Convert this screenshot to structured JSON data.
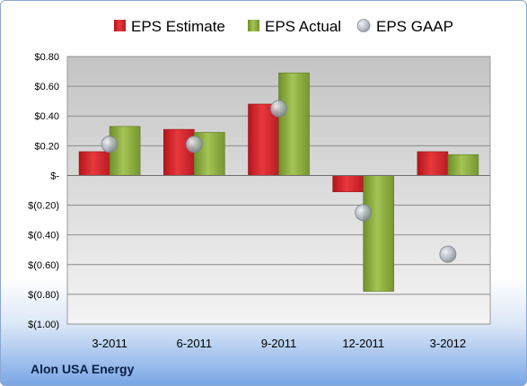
{
  "company": "Alon USA Energy",
  "colors": {
    "estimate": "#d6242a",
    "actual": "#8fb040",
    "gaap": "#a9b0ba",
    "plot_bg_top": "#cfcfcf",
    "plot_bg_bottom": "#f3f3f3"
  },
  "chart_data": {
    "type": "bar",
    "title": "",
    "xlabel": "",
    "ylabel": "",
    "categories": [
      "3-2011",
      "6-2011",
      "9-2011",
      "12-2011",
      "3-2012"
    ],
    "series": [
      {
        "name": "EPS Estimate",
        "kind": "bar",
        "values": [
          0.16,
          0.31,
          0.48,
          -0.11,
          0.16
        ]
      },
      {
        "name": "EPS Actual",
        "kind": "bar",
        "values": [
          0.33,
          0.29,
          0.69,
          -0.78,
          0.14
        ]
      },
      {
        "name": "EPS GAAP",
        "kind": "marker",
        "values": [
          0.21,
          0.21,
          0.45,
          -0.25,
          -0.53
        ]
      }
    ],
    "ylim": [
      -1.0,
      0.8
    ],
    "yticks": [
      0.8,
      0.6,
      0.4,
      0.2,
      0,
      -0.2,
      -0.4,
      -0.6,
      -0.8,
      -1.0
    ],
    "ytick_labels": [
      "$0.80",
      "$0.60",
      "$0.40",
      "$0.20",
      "$-",
      "$(0.20)",
      "$(0.40)",
      "$(0.60)",
      "$(0.80)",
      "$(1.00)"
    ],
    "grid": true,
    "legend_position": "top"
  }
}
